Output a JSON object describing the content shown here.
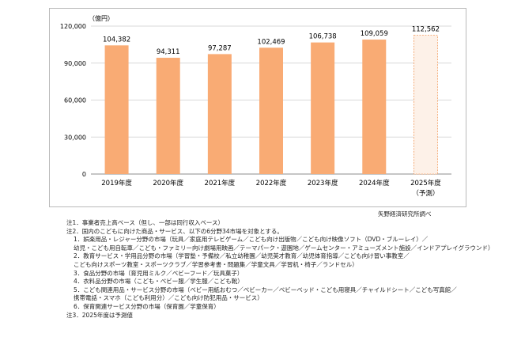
{
  "chart_data": {
    "type": "bar",
    "unit_label": "（億円）",
    "categories": [
      "2019年度",
      "2020年度",
      "2021年度",
      "2022年度",
      "2023年度",
      "2024年度",
      "2025年度"
    ],
    "category_sublabels": [
      "",
      "",
      "",
      "",
      "",
      "",
      "（予測）"
    ],
    "values": [
      104382,
      94311,
      97287,
      102469,
      106738,
      109059,
      112562
    ],
    "value_labels": [
      "104,382",
      "94,311",
      "97,287",
      "102,469",
      "106,738",
      "109,059",
      "112,562"
    ],
    "forecast_index": 6,
    "yticks": [
      0,
      30000,
      60000,
      90000,
      120000
    ],
    "ytick_labels": [
      "0",
      "30,000",
      "60,000",
      "90,000",
      "120,000"
    ],
    "ylim": [
      0,
      120000
    ],
    "grid": true,
    "colors": {
      "bar": "#f9ab74",
      "bar_forecast": "#fdf1e8",
      "bar_forecast_border": "#f39a5c",
      "grid": "#d9d9d9",
      "axis": "#8c8c8c"
    }
  },
  "source": "矢野経済研究所調べ",
  "notes": [
    {
      "text": "注1．事業者売上高ベース（但し、一部は同行収入ベース）",
      "sub": false
    },
    {
      "text": "注2．国内のこどもに向けた商品・サービス、以下の6分野34市場を対象とする。",
      "sub": false
    },
    {
      "text": "1．娯楽用品・レジャー分野の市場（玩具／家庭用テレビゲーム／こども向け出版物／こども向け映像ソフト（DVD・ブルーレイ）／",
      "sub": true
    },
    {
      "text": "幼児・こども用自転車／こども・ファミリー向け劇場用映画／テーマパーク・遊園地／ゲームセンター・アミューズメント施設／インドアプレイグラウンド）",
      "sub": true
    },
    {
      "text": "2．教育サービス・学用品分野の市場（学習塾・予備校／私立幼稚園／幼児英才教育／幼児体育指導／こども向け習い事教室／",
      "sub": true
    },
    {
      "text": "こども向けスポーツ教室・スポーツクラブ／学習参考書・問題集／学童文具／学習机・椅子／ランドセル）",
      "sub": true
    },
    {
      "text": "3．食品分野の市場（育児用ミルク／ベビーフード／玩具菓子）",
      "sub": true
    },
    {
      "text": "4．衣料品分野の市場（こども・ベビー服／学生服／こども靴）",
      "sub": true
    },
    {
      "text": "5．こども関連用品・サービス分野の市場（ベビー用紙おむつ／ベビーカー／ベビーベッド・こども用寝具／チャイルドシート／こども写真館／",
      "sub": true
    },
    {
      "text": "携帯電話・スマホ（こども利用分）／こども向け防犯用品・サービス）",
      "sub": true
    },
    {
      "text": "6．保育関連サービス分野の市場（保育園／学童保育）",
      "sub": true
    },
    {
      "text": "注3．2025年度は予測値",
      "sub": false
    }
  ]
}
